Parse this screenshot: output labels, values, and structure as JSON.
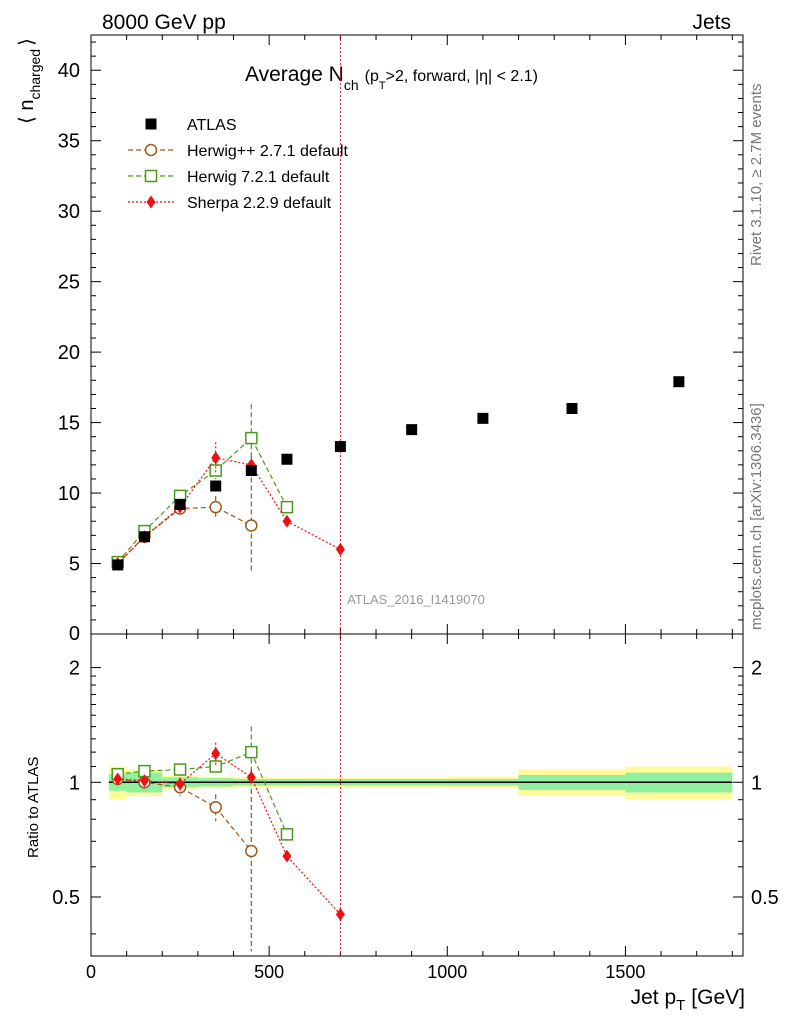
{
  "header": {
    "left": "8000 GeV pp",
    "right": "Jets"
  },
  "side": {
    "rivet": "Rivet 3.1.10, ≥ 2.7M events",
    "mcplots": "mcplots.cern.ch [arXiv:1306.3436]"
  },
  "title": {
    "main": "Average N",
    "sub": "ch",
    "cond_a": "(p",
    "cond_sub": "T",
    "cond_b": ">2, forward, |η| < 2.1)"
  },
  "watermark": "ATLAS_2016_I1419070",
  "axes": {
    "ylabel_main": "⟨ n",
    "ylabel_sub": "charged",
    "ylabel_close": "⟩",
    "ratio_ylabel": "Ratio to ATLAS",
    "xlabel_main": "Jet p",
    "xlabel_sub": "T",
    "xlabel_unit": "[GeV]"
  },
  "legend": [
    {
      "label": "ATLAS",
      "marker": "square-filled",
      "color": "#000000"
    },
    {
      "label": "Herwig++ 2.7.1 default",
      "marker": "circle-open",
      "color": "#a0581c",
      "dash": "5,3"
    },
    {
      "label": "Herwig 7.2.1 default",
      "marker": "square-open",
      "color": "#4a9a1c",
      "dash": "5,3"
    },
    {
      "label": "Sherpa 2.2.9 default",
      "marker": "diamond-filled",
      "color": "#ee1111",
      "dash": "2,2"
    }
  ],
  "chart_data": {
    "type": "scatter",
    "x_ticks": [
      "0",
      "500",
      "1000",
      "1500"
    ],
    "y_ticks": [
      "5",
      "10",
      "15",
      "20",
      "25",
      "30",
      "35",
      "40"
    ],
    "y_ticks_zero": "0",
    "ratio_ticks": [
      "0.5",
      "1",
      "2"
    ],
    "xlim": [
      0,
      1830
    ],
    "ylim": [
      0,
      42.5
    ],
    "ratio_ylim": [
      0.35,
      2.45
    ],
    "ratio_scale": "log",
    "vline_x": 700,
    "series": [
      {
        "name": "ATLAS",
        "x": [
          75,
          150,
          250,
          350,
          450,
          550,
          700,
          900,
          1100,
          1350,
          1650
        ],
        "y": [
          4.9,
          6.9,
          9.2,
          10.5,
          11.6,
          12.4,
          13.3,
          14.5,
          15.3,
          16.0,
          17.9
        ],
        "ratio_band_x": [
          [
            50,
            100
          ],
          [
            100,
            200
          ],
          [
            200,
            300
          ],
          [
            300,
            400
          ],
          [
            400,
            500
          ],
          [
            500,
            600
          ],
          [
            600,
            800
          ],
          [
            800,
            1000
          ],
          [
            1000,
            1200
          ],
          [
            1200,
            1500
          ],
          [
            1500,
            1800
          ]
        ],
        "ratio_band_inner": [
          0.05,
          0.06,
          0.03,
          0.025,
          0.02,
          0.02,
          0.02,
          0.02,
          0.02,
          0.045,
          0.06
        ],
        "ratio_band_outer": [
          0.1,
          0.08,
          0.04,
          0.035,
          0.03,
          0.03,
          0.03,
          0.03,
          0.035,
          0.08,
          0.1
        ]
      },
      {
        "name": "Herwig++ 2.7.1 default",
        "x": [
          75,
          150,
          250,
          350,
          450
        ],
        "y": [
          5.0,
          6.9,
          8.9,
          9.0,
          7.7
        ],
        "yerr": [
          0.1,
          0.2,
          0.4,
          0.8,
          3.4
        ],
        "ratio": [
          1.02,
          1.0,
          0.97,
          0.86,
          0.66
        ],
        "ratio_err": [
          0.02,
          0.03,
          0.05,
          0.07,
          0.3
        ]
      },
      {
        "name": "Herwig 7.2.1 default",
        "x": [
          75,
          150,
          250,
          350,
          450,
          550
        ],
        "y": [
          5.1,
          7.3,
          9.8,
          11.6,
          13.9,
          9.0
        ],
        "yerr": [
          0.1,
          0.2,
          0.3,
          0.6,
          2.4,
          0.3
        ],
        "ratio": [
          1.05,
          1.07,
          1.08,
          1.1,
          1.2,
          0.73
        ],
        "ratio_err": [
          0.02,
          0.03,
          0.03,
          0.05,
          0.2,
          0.03
        ]
      },
      {
        "name": "Sherpa 2.2.9 default",
        "x": [
          75,
          150,
          250,
          350,
          450,
          550,
          700
        ],
        "y": [
          5.0,
          6.9,
          9.0,
          12.5,
          12.0,
          8.0,
          6.0
        ],
        "yerr": [
          0.1,
          0.2,
          0.3,
          1.1,
          0.6,
          0.2,
          0.2
        ],
        "ratio": [
          1.02,
          1.01,
          0.99,
          1.19,
          1.03,
          0.64,
          0.45
        ],
        "ratio_err": [
          0.02,
          0.03,
          0.04,
          0.08,
          0.05,
          0.02,
          0.02
        ]
      }
    ]
  }
}
